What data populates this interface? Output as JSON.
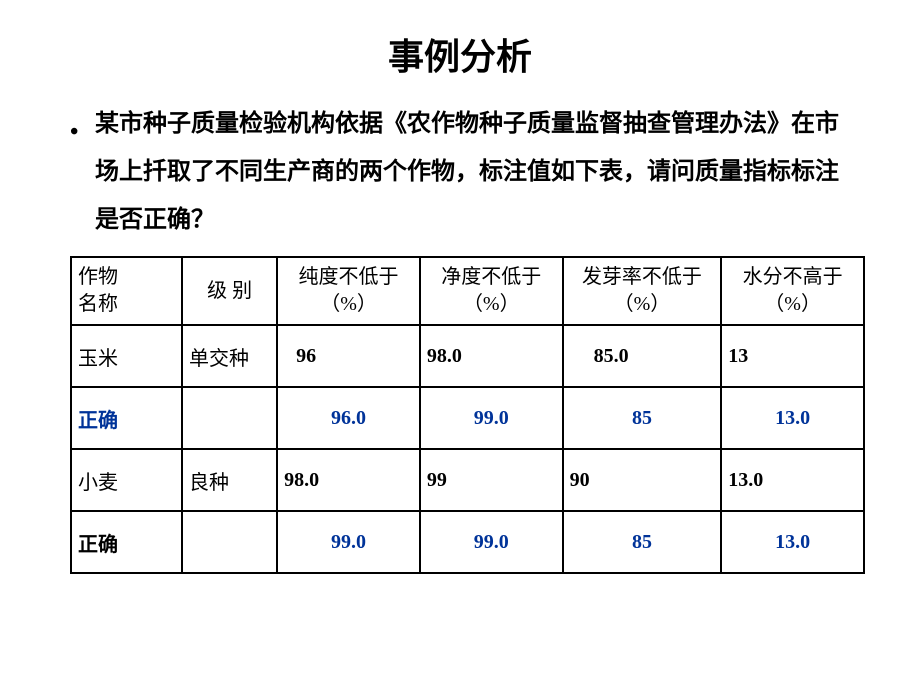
{
  "title": "事例分析",
  "intro": "某市种子质量检验机构依据《农作物种子质量监督抽查管理办法》在市场上扦取了不同生产商的两个作物，标注值如下表，请问质量指标标注是否正确？",
  "headers": {
    "col1": "作物\n名称",
    "col2": "级 别",
    "col3": "纯度不低于\n（%）",
    "col4": "净度不低于\n（%）",
    "col5": "发芽率不低于（%）",
    "col6": "水分不高于\n（%）"
  },
  "rows": [
    {
      "name": "玉米",
      "grade": "单交种",
      "purity": "96",
      "clean": "98.0",
      "germ": "85.0",
      "moist": "13"
    },
    {
      "name": "正确",
      "nameColor": "#003399",
      "purity": "96.0",
      "clean": "99.0",
      "germ": "85",
      "moist": "13.0"
    },
    {
      "name": "小麦",
      "grade": "良种",
      "purity": "98.0",
      "clean": "99",
      "germ": "90",
      "moist": "13.0"
    },
    {
      "name": "正确",
      "nameColor": "#000000",
      "purity": "99.0",
      "clean": "99.0",
      "germ": "85",
      "moist": "13.0"
    }
  ],
  "colors": {
    "blue": "#003399",
    "black": "#000000",
    "border": "#000000",
    "background": "#ffffff"
  },
  "fonts": {
    "title_size": 36,
    "body_size": 24,
    "table_size": 20
  }
}
